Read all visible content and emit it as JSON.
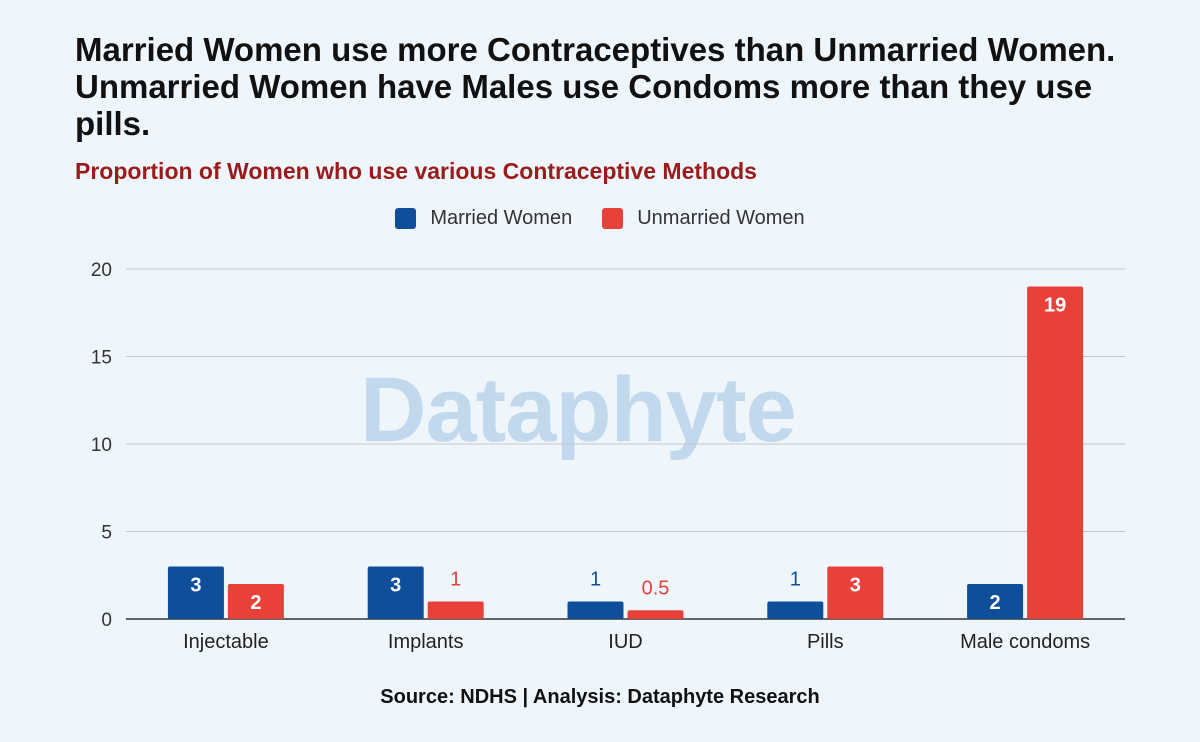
{
  "title": "Married Women use more Contraceptives than Unmarried Women. Unmarried Women have Males use Condoms more than they use pills.",
  "subtitle": "Proportion of Women who use various Contraceptive Methods",
  "watermark": "Dataphyte",
  "source": "Source: NDHS | Analysis: Dataphyte Research",
  "chart_data": {
    "type": "bar",
    "categories": [
      "Injectable",
      "Implants",
      "IUD",
      "Pills",
      "Male condoms"
    ],
    "series": [
      {
        "name": "Married Women",
        "color": "#0f4e98",
        "values": [
          3,
          3,
          1,
          1,
          2
        ]
      },
      {
        "name": "Unmarried Women",
        "color": "#e8413a",
        "values": [
          2,
          1,
          0.5,
          3,
          19
        ]
      }
    ],
    "ylim": [
      0,
      20
    ],
    "yticks": [
      0,
      5,
      10,
      15,
      20
    ],
    "grid": true,
    "legend": "top-center"
  }
}
